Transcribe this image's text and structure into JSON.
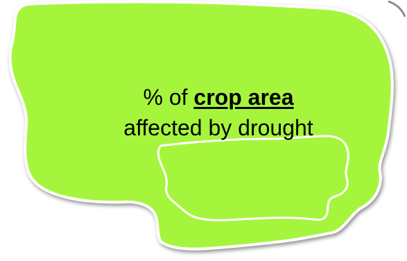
{
  "label": {
    "prefix": "% of",
    "emphasis": "crop area",
    "line2": "affected by drought"
  },
  "colors": {
    "fill": "#a6f53c",
    "outline": "#ffffff",
    "shadow": "#b8b8b8",
    "text": "#000000"
  },
  "icons": {
    "outer-region": "green-blob-shape",
    "inner-region": "white-outline-shape"
  }
}
